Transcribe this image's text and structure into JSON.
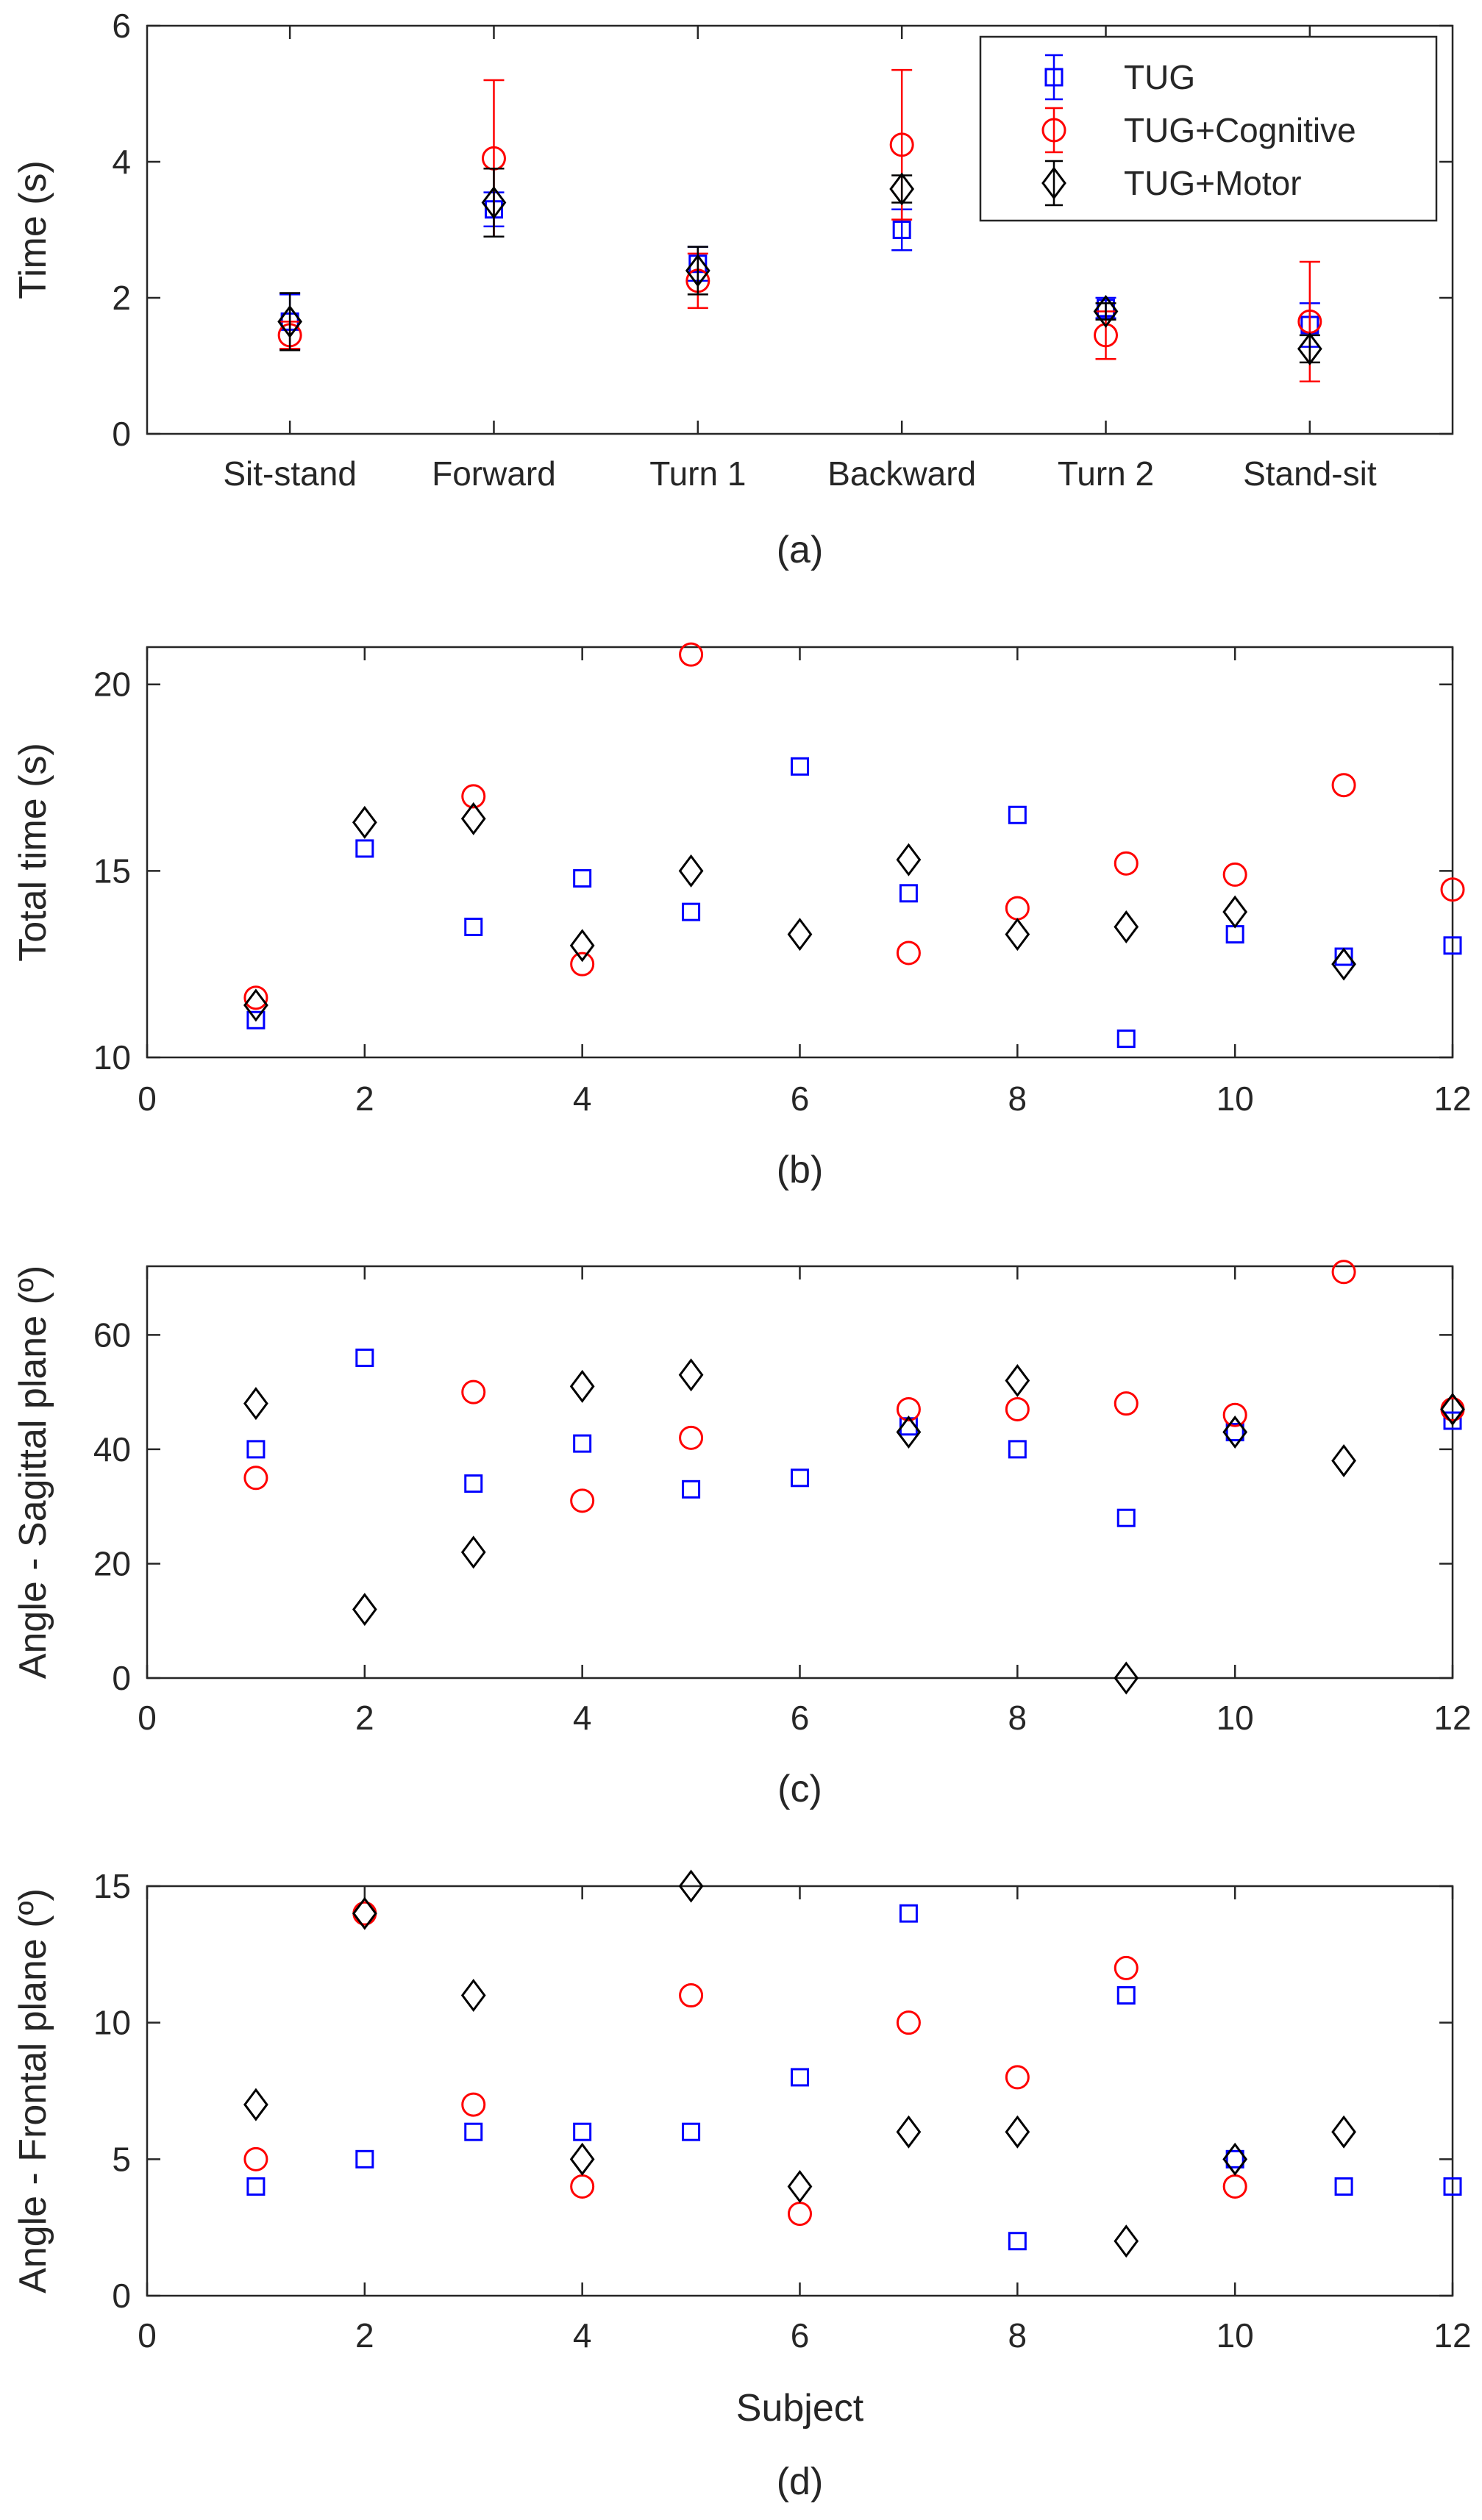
{
  "colors": {
    "TUG": "#0000ff",
    "TUG+Cognitive": "#ff0000",
    "TUG+Motor": "#000000",
    "axis": "#262626"
  },
  "legend": [
    "TUG",
    "TUG+Cognitive",
    "TUG+Motor"
  ],
  "chart_data": [
    {
      "id": "a",
      "type": "scatter",
      "caption": "(a)",
      "ylabel": "Time (s)",
      "xlabel": "",
      "ylim": [
        0,
        6
      ],
      "yticks": [
        0,
        2,
        4,
        6
      ],
      "categories": [
        "Sit-stand",
        "Forward",
        "Turn 1",
        "Backward",
        "Turn 2",
        "Stand-sit"
      ],
      "series": [
        {
          "name": "TUG",
          "values": [
            1.65,
            3.3,
            2.5,
            3.0,
            1.85,
            1.6
          ],
          "err": [
            0.4,
            0.25,
            0.25,
            0.3,
            0.15,
            0.32
          ]
        },
        {
          "name": "TUG+Cognitive",
          "values": [
            1.45,
            4.05,
            2.25,
            4.25,
            1.45,
            1.65
          ],
          "err": [
            0.2,
            1.15,
            0.4,
            1.1,
            0.35,
            0.88
          ]
        },
        {
          "name": "TUG+Motor",
          "values": [
            1.65,
            3.4,
            2.4,
            3.6,
            1.8,
            1.25
          ],
          "err": [
            0.42,
            0.5,
            0.35,
            0.2,
            0.12,
            0.2
          ]
        }
      ]
    },
    {
      "id": "b",
      "type": "scatter",
      "caption": "(b)",
      "ylabel": "Total time (s)",
      "xlabel": "",
      "xlim": [
        0,
        12
      ],
      "ylim": [
        10,
        21
      ],
      "xticks": [
        0,
        2,
        4,
        6,
        8,
        10,
        12
      ],
      "yticks": [
        10,
        15,
        20
      ],
      "series": [
        {
          "name": "TUG",
          "x": [
            1,
            2,
            3,
            4,
            5,
            6,
            7,
            8,
            9,
            10,
            11,
            12
          ],
          "values": [
            11.0,
            15.6,
            13.5,
            14.8,
            13.9,
            17.8,
            14.4,
            16.5,
            10.5,
            13.3,
            12.7,
            13.0
          ]
        },
        {
          "name": "TUG+Cognitive",
          "x": [
            1,
            3,
            4,
            5,
            7,
            8,
            9,
            10,
            11,
            12
          ],
          "values": [
            11.6,
            17.0,
            12.5,
            20.8,
            12.8,
            14.0,
            15.2,
            14.9,
            17.3,
            14.5
          ]
        },
        {
          "name": "TUG+Motor",
          "x": [
            1,
            2,
            3,
            4,
            5,
            6,
            7,
            8,
            9,
            10,
            11
          ],
          "values": [
            11.4,
            16.3,
            16.4,
            13.0,
            15.0,
            13.3,
            15.3,
            13.3,
            13.5,
            13.9,
            12.5
          ]
        }
      ]
    },
    {
      "id": "c",
      "type": "scatter",
      "caption": "(c)",
      "ylabel": "Angle - Sagittal plane (º)",
      "xlabel": "",
      "xlim": [
        0,
        12
      ],
      "ylim": [
        0,
        72
      ],
      "xticks": [
        0,
        2,
        4,
        6,
        8,
        10,
        12
      ],
      "yticks": [
        0,
        20,
        40,
        60
      ],
      "series": [
        {
          "name": "TUG",
          "x": [
            1,
            2,
            3,
            4,
            5,
            6,
            7,
            8,
            9,
            10,
            12
          ],
          "values": [
            40,
            56,
            34,
            41,
            33,
            35,
            44,
            40,
            28,
            43,
            45
          ]
        },
        {
          "name": "TUG+Cognitive",
          "x": [
            1,
            3,
            4,
            5,
            7,
            8,
            9,
            10,
            11,
            12
          ],
          "values": [
            35,
            50,
            31,
            42,
            47,
            47,
            48,
            46,
            71,
            47
          ]
        },
        {
          "name": "TUG+Motor",
          "x": [
            1,
            2,
            3,
            4,
            5,
            7,
            8,
            9,
            10,
            11,
            12
          ],
          "values": [
            48,
            12,
            22,
            51,
            53,
            43,
            52,
            0,
            43,
            38,
            47
          ]
        }
      ]
    },
    {
      "id": "d",
      "type": "scatter",
      "caption": "(d)",
      "ylabel": "Angle - Frontal plane (º)",
      "xlabel": "Subject",
      "xlim": [
        0,
        12
      ],
      "ylim": [
        0,
        15
      ],
      "xticks": [
        0,
        2,
        4,
        6,
        8,
        10,
        12
      ],
      "yticks": [
        0,
        5,
        10,
        15
      ],
      "series": [
        {
          "name": "TUG",
          "x": [
            1,
            2,
            3,
            4,
            5,
            6,
            7,
            8,
            9,
            10,
            11,
            12
          ],
          "values": [
            4,
            5,
            6,
            6,
            6,
            8,
            14,
            2,
            11,
            5,
            4,
            4
          ]
        },
        {
          "name": "TUG+Cognitive",
          "x": [
            1,
            2,
            3,
            4,
            5,
            6,
            7,
            8,
            9,
            10
          ],
          "values": [
            5,
            14,
            7,
            4,
            11,
            3,
            10,
            8,
            12,
            4
          ]
        },
        {
          "name": "TUG+Motor",
          "x": [
            1,
            2,
            3,
            4,
            5,
            6,
            7,
            8,
            9,
            10,
            11
          ],
          "values": [
            7,
            14,
            11,
            5,
            15,
            4,
            6,
            6,
            2,
            5,
            6
          ]
        }
      ]
    }
  ]
}
